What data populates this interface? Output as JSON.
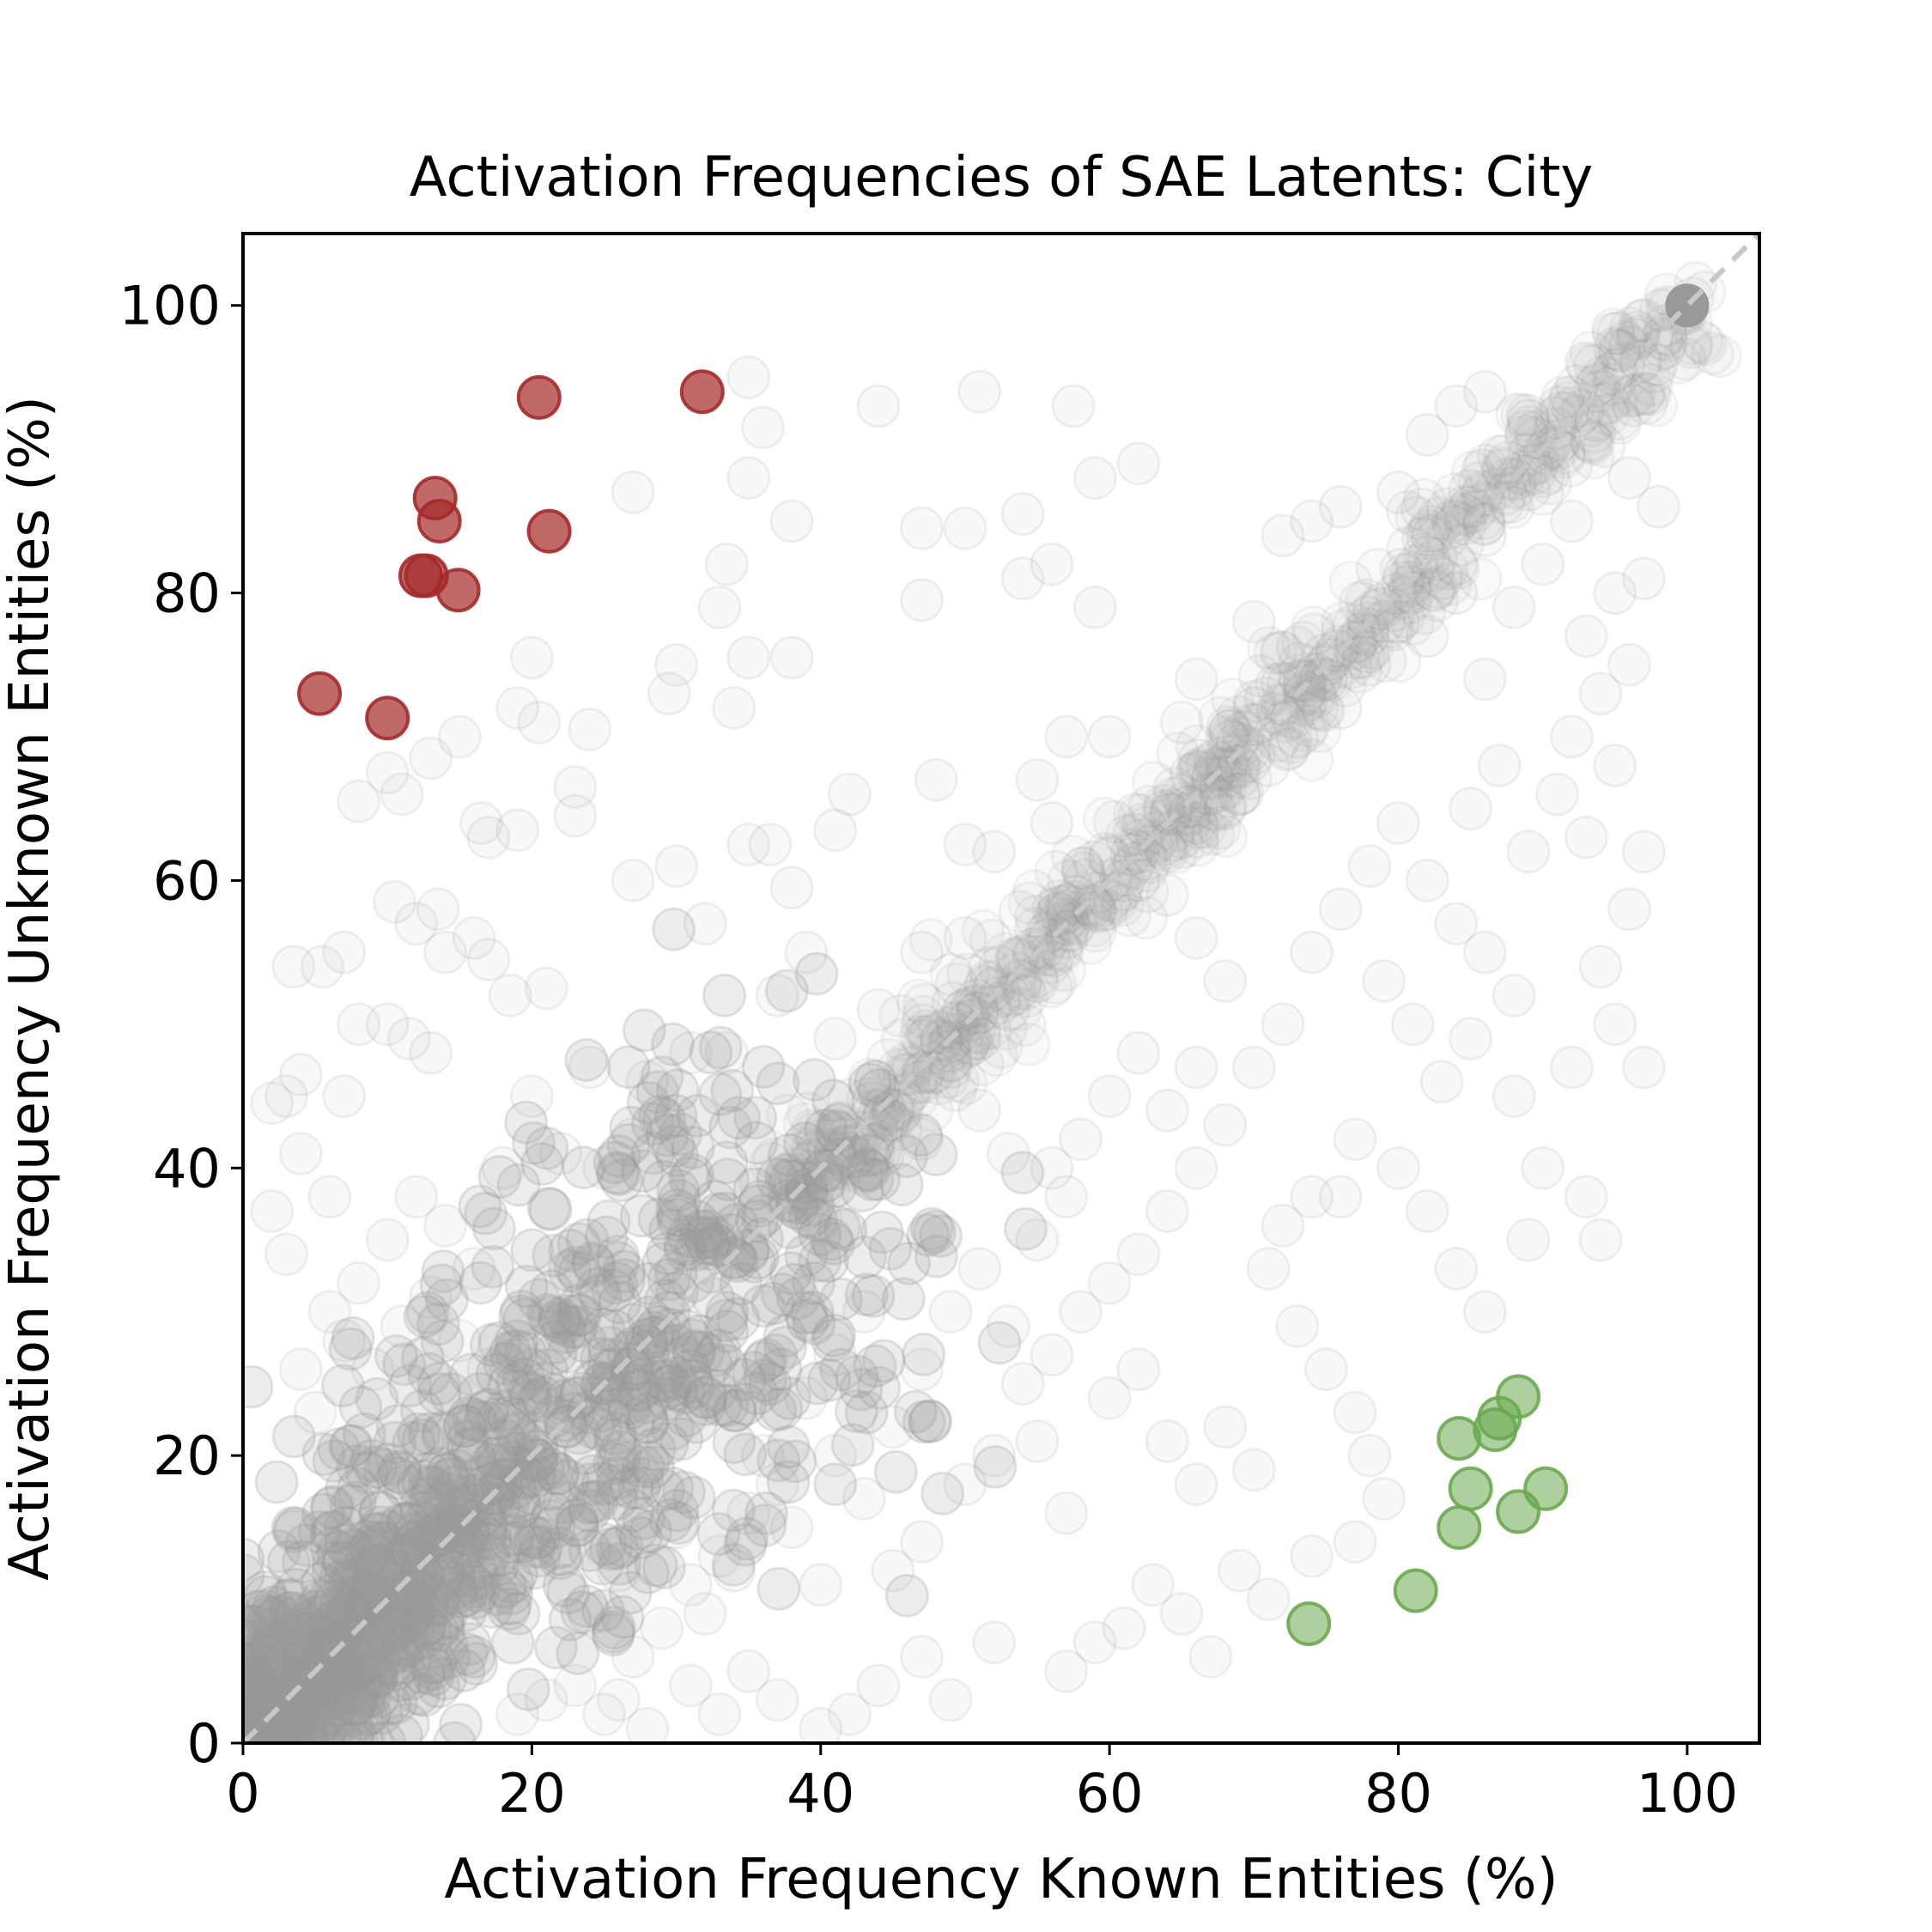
{
  "chart_data": {
    "type": "scatter",
    "title": "Activation Frequencies of SAE Latents: City",
    "xlabel": "Activation Frequency Known Entities (%)",
    "ylabel": "Activation Frequency Unknown Entities (%)",
    "xlim": [
      0,
      105
    ],
    "ylim": [
      0,
      105
    ],
    "xticks": [
      0,
      20,
      40,
      60,
      80,
      100
    ],
    "yticks": [
      0,
      20,
      40,
      60,
      80,
      100
    ],
    "tick_labels": {
      "x": [
        "0",
        "20",
        "40",
        "60",
        "80",
        "100"
      ],
      "y": [
        "0",
        "20",
        "40",
        "60",
        "80",
        "100"
      ]
    },
    "grid": false,
    "legend": "none",
    "reference_line": {
      "style": "dashed",
      "from": [
        0,
        0
      ],
      "to": [
        105,
        105
      ],
      "color": "#c8c8c8"
    },
    "series": [
      {
        "role": "all latents",
        "color": "#999999",
        "opacity": 0.07,
        "points": [
          [
            100,
            100
          ],
          [
            98.5,
            98
          ],
          [
            97,
            99
          ],
          [
            95,
            97
          ],
          [
            93,
            96
          ],
          [
            35,
            95
          ],
          [
            44,
            93
          ],
          [
            51,
            94
          ],
          [
            57.5,
            93
          ],
          [
            59,
            88
          ],
          [
            62,
            89
          ],
          [
            36,
            91.5
          ],
          [
            35,
            88
          ],
          [
            27,
            87
          ],
          [
            38,
            85
          ],
          [
            47,
            84.5
          ],
          [
            50,
            84.5
          ],
          [
            54,
            85.5
          ],
          [
            54,
            81
          ],
          [
            56,
            82
          ],
          [
            47,
            79.5
          ],
          [
            59,
            79
          ],
          [
            33,
            79
          ],
          [
            33.5,
            82
          ],
          [
            20,
            75.5
          ],
          [
            30,
            75
          ],
          [
            35,
            75.5
          ],
          [
            38,
            75.5
          ],
          [
            34,
            72
          ],
          [
            29.5,
            73
          ],
          [
            24,
            70.5
          ],
          [
            19,
            72
          ],
          [
            20.5,
            71
          ],
          [
            15,
            70
          ],
          [
            13,
            68.5
          ],
          [
            10,
            67.5
          ],
          [
            11,
            66
          ],
          [
            8,
            65.5
          ],
          [
            16.5,
            64
          ],
          [
            19,
            63.5
          ],
          [
            17,
            63
          ],
          [
            23,
            66.5
          ],
          [
            23,
            64.5
          ],
          [
            42,
            66
          ],
          [
            48,
            67
          ],
          [
            41,
            63.5
          ],
          [
            30,
            61
          ],
          [
            35,
            62.5
          ],
          [
            36.5,
            62.5
          ],
          [
            27,
            60
          ],
          [
            38,
            59.5
          ],
          [
            32,
            57
          ],
          [
            10.5,
            58.5
          ],
          [
            13.5,
            58
          ],
          [
            12,
            57
          ],
          [
            14,
            55
          ],
          [
            16,
            56
          ],
          [
            17,
            54.5
          ],
          [
            18.5,
            52
          ],
          [
            21,
            52.5
          ],
          [
            7,
            55
          ],
          [
            5.5,
            54
          ],
          [
            3.5,
            54
          ],
          [
            8,
            50
          ],
          [
            10,
            50
          ],
          [
            11.5,
            49
          ],
          [
            13,
            48
          ],
          [
            7,
            45
          ],
          [
            4,
            46.5
          ],
          [
            3,
            45
          ],
          [
            2,
            44.5
          ],
          [
            20,
            45
          ],
          [
            18,
            40
          ],
          [
            22,
            41
          ],
          [
            25,
            40
          ],
          [
            27,
            42
          ],
          [
            24,
            47
          ],
          [
            28,
            46
          ],
          [
            31,
            48
          ],
          [
            33.5,
            48
          ],
          [
            37,
            52
          ],
          [
            39,
            55
          ],
          [
            41,
            49
          ],
          [
            44,
            51
          ],
          [
            47,
            55
          ],
          [
            50,
            56
          ],
          [
            50,
            62.5
          ],
          [
            52,
            62
          ],
          [
            55,
            67
          ],
          [
            56,
            64
          ],
          [
            57,
            70
          ],
          [
            60,
            70
          ],
          [
            65,
            71
          ],
          [
            66,
            74
          ],
          [
            70,
            72
          ],
          [
            70,
            78
          ],
          [
            72,
            84
          ],
          [
            74,
            85
          ],
          [
            76,
            86
          ],
          [
            80,
            87
          ],
          [
            82,
            91
          ],
          [
            84,
            93
          ],
          [
            86,
            94
          ],
          [
            89,
            92
          ],
          [
            91,
            90
          ],
          [
            96,
            88
          ],
          [
            98,
            86
          ],
          [
            97,
            81
          ],
          [
            95,
            80
          ],
          [
            93,
            77
          ],
          [
            96,
            75
          ],
          [
            94,
            73
          ],
          [
            92,
            70
          ],
          [
            95,
            68
          ],
          [
            93,
            63
          ],
          [
            97,
            62
          ],
          [
            96,
            58
          ],
          [
            94,
            54
          ],
          [
            95,
            50
          ],
          [
            97,
            47
          ],
          [
            92,
            47
          ],
          [
            88,
            45
          ],
          [
            90,
            40
          ],
          [
            93,
            38
          ],
          [
            94,
            35
          ],
          [
            89,
            35
          ],
          [
            86,
            30
          ],
          [
            84,
            33
          ],
          [
            82,
            37
          ],
          [
            80,
            40
          ],
          [
            77,
            42
          ],
          [
            76,
            38
          ],
          [
            74,
            38
          ],
          [
            72,
            36
          ],
          [
            71,
            33
          ],
          [
            73,
            29
          ],
          [
            75,
            26
          ],
          [
            77,
            23
          ],
          [
            78,
            20
          ],
          [
            79,
            17
          ],
          [
            77,
            14
          ],
          [
            74,
            13
          ],
          [
            71,
            10
          ],
          [
            69,
            12
          ],
          [
            67,
            6
          ],
          [
            65,
            9
          ],
          [
            63,
            11
          ],
          [
            61,
            8
          ],
          [
            59,
            7
          ],
          [
            57,
            5
          ],
          [
            52,
            7
          ],
          [
            49,
            3
          ],
          [
            47,
            6
          ],
          [
            44,
            4
          ],
          [
            42,
            2
          ],
          [
            40,
            1
          ],
          [
            37,
            3
          ],
          [
            35,
            5
          ],
          [
            33,
            2
          ],
          [
            31,
            4
          ],
          [
            28,
            1
          ],
          [
            26,
            3
          ],
          [
            45,
            12
          ],
          [
            47,
            14
          ],
          [
            50,
            18
          ],
          [
            52,
            20
          ],
          [
            54,
            25
          ],
          [
            56,
            27
          ],
          [
            58,
            30
          ],
          [
            60,
            32
          ],
          [
            62,
            34
          ],
          [
            64,
            37
          ],
          [
            66,
            40
          ],
          [
            68,
            43
          ],
          [
            60,
            24
          ],
          [
            62,
            26
          ],
          [
            64,
            21
          ],
          [
            66,
            18
          ],
          [
            68,
            22
          ],
          [
            70,
            19
          ],
          [
            55,
            35
          ],
          [
            57,
            38
          ],
          [
            53,
            41
          ],
          [
            51,
            44
          ],
          [
            49,
            47
          ],
          [
            47,
            42
          ],
          [
            43,
            30
          ],
          [
            41,
            27
          ],
          [
            39,
            24
          ],
          [
            41,
            20
          ],
          [
            43,
            17
          ],
          [
            45,
            22
          ],
          [
            47,
            26
          ],
          [
            49,
            30
          ],
          [
            51,
            33
          ],
          [
            53,
            29
          ],
          [
            55,
            21
          ],
          [
            57,
            16
          ],
          [
            36,
            20
          ],
          [
            38,
            15
          ],
          [
            40,
            11
          ],
          [
            34,
            12
          ],
          [
            32,
            9
          ],
          [
            30,
            15
          ],
          [
            74,
            55
          ],
          [
            76,
            58
          ],
          [
            78,
            61
          ],
          [
            80,
            64
          ],
          [
            82,
            60
          ],
          [
            84,
            57
          ],
          [
            86,
            55
          ],
          [
            88,
            52
          ],
          [
            85,
            49
          ],
          [
            83,
            46
          ],
          [
            81,
            50
          ],
          [
            79,
            53
          ],
          [
            72,
            50
          ],
          [
            70,
            47
          ],
          [
            68,
            53
          ],
          [
            66,
            56
          ],
          [
            64,
            59
          ],
          [
            62,
            62
          ],
          [
            85,
            65
          ],
          [
            87,
            68
          ],
          [
            89,
            62
          ],
          [
            91,
            66
          ],
          [
            86,
            74
          ],
          [
            88,
            79
          ],
          [
            90,
            82
          ],
          [
            92,
            85
          ],
          [
            84,
            80
          ],
          [
            82,
            77
          ],
          [
            80,
            78
          ],
          [
            78,
            75
          ],
          [
            86,
            84
          ],
          [
            85,
            86
          ],
          [
            84,
            82
          ],
          [
            83,
            81
          ],
          [
            81,
            80
          ],
          [
            79,
            78
          ],
          [
            76,
            72
          ],
          [
            75,
            74
          ],
          [
            73,
            70
          ],
          [
            71,
            68
          ],
          [
            69,
            66
          ],
          [
            68,
            65
          ],
          [
            67,
            66
          ],
          [
            66,
            64
          ],
          [
            65,
            63
          ],
          [
            64,
            62
          ],
          [
            62,
            60
          ],
          [
            61,
            60
          ],
          [
            59,
            58
          ],
          [
            57,
            56
          ],
          [
            55,
            53
          ],
          [
            53,
            51
          ],
          [
            51,
            49
          ],
          [
            49,
            47.5
          ],
          [
            47,
            46
          ],
          [
            45,
            44
          ],
          [
            43,
            42.5
          ],
          [
            41,
            41
          ],
          [
            39,
            39
          ],
          [
            38,
            37.5
          ],
          [
            6,
            30
          ],
          [
            8,
            32
          ],
          [
            10,
            35
          ],
          [
            12,
            38
          ],
          [
            14,
            36
          ],
          [
            16,
            33
          ],
          [
            4,
            26
          ],
          [
            5,
            23
          ],
          [
            7,
            28
          ],
          [
            9,
            26
          ],
          [
            11,
            29
          ],
          [
            13,
            31
          ],
          [
            15,
            28
          ],
          [
            17,
            26
          ],
          [
            3,
            34
          ],
          [
            2,
            37
          ],
          [
            4,
            41
          ],
          [
            6,
            38
          ],
          [
            25,
            2
          ],
          [
            23,
            4
          ],
          [
            21,
            3
          ],
          [
            19,
            2
          ],
          [
            27,
            6
          ],
          [
            29,
            8
          ],
          [
            31,
            11
          ],
          [
            33,
            13
          ],
          [
            35,
            16
          ],
          [
            37,
            18
          ],
          [
            26,
            12
          ],
          [
            24,
            9
          ],
          [
            60,
            45
          ],
          [
            62,
            48
          ],
          [
            64,
            44
          ],
          [
            66,
            47
          ],
          [
            58,
            42
          ],
          [
            56,
            40
          ]
        ],
        "dense_band": {
          "x_range": [
            0,
            40
          ],
          "y_range": [
            0,
            38
          ],
          "along": "diagonal"
        }
      },
      {
        "role": "highlighted unknown-specific latents",
        "color": "#a52a2a",
        "opacity": 0.7,
        "points": [
          [
            5.3,
            73
          ],
          [
            10,
            71.3
          ],
          [
            12.3,
            81.2
          ],
          [
            12.7,
            81.2
          ],
          [
            13.3,
            86.6
          ],
          [
            13.6,
            85
          ],
          [
            14.9,
            80.2
          ],
          [
            20.5,
            93.6
          ],
          [
            21.2,
            84.3
          ],
          [
            31.8,
            94
          ]
        ]
      },
      {
        "role": "highlighted known-specific latents",
        "color": "#6aaa4f",
        "opacity": 0.55,
        "points": [
          [
            73.8,
            8.3
          ],
          [
            81.2,
            10.6
          ],
          [
            84.2,
            15
          ],
          [
            85,
            17.7
          ],
          [
            84.2,
            21.2
          ],
          [
            86.7,
            21.8
          ],
          [
            87,
            22.6
          ],
          [
            88.3,
            24.1
          ],
          [
            88.3,
            16.1
          ],
          [
            90.2,
            17.7
          ]
        ]
      }
    ]
  }
}
